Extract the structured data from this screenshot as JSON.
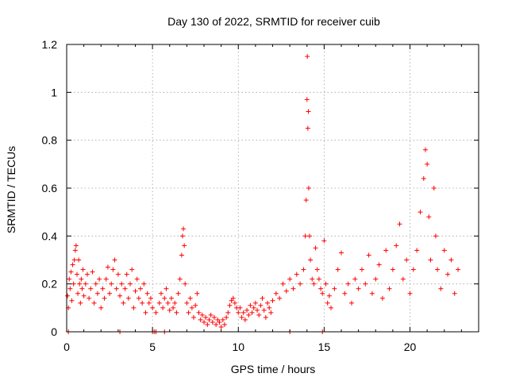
{
  "chart_data": {
    "type": "scatter",
    "title": "Day 130 of 2022, SRMTID for receiver cuib",
    "xlabel": "GPS time / hours",
    "ylabel": "SRMTID / TECUs",
    "xlim": [
      0,
      24
    ],
    "ylim": [
      0,
      1.2
    ],
    "xticks": [
      0,
      5,
      10,
      15,
      20
    ],
    "xtick_labels": [
      "0",
      "5",
      "10",
      "15",
      "20"
    ],
    "yticks": [
      0,
      0.2,
      0.4,
      0.6,
      0.8,
      1.0,
      1.2
    ],
    "ytick_labels": [
      "0",
      "0.2",
      "0.4",
      "0.6",
      "0.8",
      "1",
      "1.2"
    ],
    "grid": true,
    "marker": "+",
    "color": "#ff0000",
    "series": [
      {
        "name": "SRMTID",
        "points": [
          [
            0.05,
            0.15
          ],
          [
            0.1,
            0.1
          ],
          [
            0.15,
            0.22
          ],
          [
            0.2,
            0.18
          ],
          [
            0.25,
            0.25
          ],
          [
            0.3,
            0.13
          ],
          [
            0.35,
            0.28
          ],
          [
            0.4,
            0.2
          ],
          [
            0.45,
            0.3
          ],
          [
            0.5,
            0.34
          ],
          [
            0.55,
            0.36
          ],
          [
            0.6,
            0.24
          ],
          [
            0.65,
            0.16
          ],
          [
            0.7,
            0.3
          ],
          [
            0.75,
            0.2
          ],
          [
            0.8,
            0.12
          ],
          [
            0.85,
            0.22
          ],
          [
            0.9,
            0.18
          ],
          [
            0.95,
            0.26
          ],
          [
            1.0,
            0.15
          ],
          [
            1.1,
            0.2
          ],
          [
            1.2,
            0.24
          ],
          [
            1.3,
            0.14
          ],
          [
            1.4,
            0.18
          ],
          [
            1.5,
            0.25
          ],
          [
            1.6,
            0.12
          ],
          [
            1.7,
            0.2
          ],
          [
            1.8,
            0.16
          ],
          [
            1.9,
            0.22
          ],
          [
            2.0,
            0.1
          ],
          [
            2.1,
            0.18
          ],
          [
            2.2,
            0.14
          ],
          [
            2.3,
            0.22
          ],
          [
            2.4,
            0.27
          ],
          [
            2.5,
            0.16
          ],
          [
            2.6,
            0.2
          ],
          [
            2.7,
            0.26
          ],
          [
            2.8,
            0.3
          ],
          [
            2.9,
            0.18
          ],
          [
            3.0,
            0.24
          ],
          [
            3.1,
            0.15
          ],
          [
            3.2,
            0.2
          ],
          [
            3.3,
            0.12
          ],
          [
            3.4,
            0.18
          ],
          [
            3.5,
            0.24
          ],
          [
            3.6,
            0.14
          ],
          [
            3.7,
            0.2
          ],
          [
            3.8,
            0.26
          ],
          [
            3.9,
            0.1
          ],
          [
            4.0,
            0.17
          ],
          [
            4.1,
            0.22
          ],
          [
            4.2,
            0.14
          ],
          [
            4.3,
            0.18
          ],
          [
            4.4,
            0.12
          ],
          [
            4.5,
            0.2
          ],
          [
            4.6,
            0.08
          ],
          [
            4.7,
            0.16
          ],
          [
            4.8,
            0.12
          ],
          [
            4.9,
            0.14
          ],
          [
            5.0,
            0.1
          ],
          [
            5.2,
            0.08
          ],
          [
            5.4,
            0.12
          ],
          [
            5.5,
            0.16
          ],
          [
            5.6,
            0.1
          ],
          [
            5.7,
            0.14
          ],
          [
            5.8,
            0.18
          ],
          [
            5.9,
            0.12
          ],
          [
            6.0,
            0.09
          ],
          [
            6.1,
            0.14
          ],
          [
            6.2,
            0.1
          ],
          [
            6.3,
            0.12
          ],
          [
            6.4,
            0.08
          ],
          [
            6.5,
            0.16
          ],
          [
            6.6,
            0.22
          ],
          [
            6.7,
            0.32
          ],
          [
            6.75,
            0.4
          ],
          [
            6.8,
            0.43
          ],
          [
            6.85,
            0.36
          ],
          [
            6.9,
            0.2
          ],
          [
            7.0,
            0.12
          ],
          [
            7.1,
            0.08
          ],
          [
            7.2,
            0.14
          ],
          [
            7.3,
            0.1
          ],
          [
            7.4,
            0.06
          ],
          [
            7.5,
            0.11
          ],
          [
            7.6,
            0.16
          ],
          [
            7.7,
            0.08
          ],
          [
            7.8,
            0.05
          ],
          [
            7.9,
            0.07
          ],
          [
            8.0,
            0.04
          ],
          [
            8.1,
            0.06
          ],
          [
            8.2,
            0.03
          ],
          [
            8.3,
            0.05
          ],
          [
            8.4,
            0.07
          ],
          [
            8.5,
            0.04
          ],
          [
            8.6,
            0.06
          ],
          [
            8.7,
            0.03
          ],
          [
            8.8,
            0.05
          ],
          [
            8.9,
            0.04
          ],
          [
            9.0,
            0.02
          ],
          [
            9.1,
            0.05
          ],
          [
            9.2,
            0.03
          ],
          [
            9.3,
            0.06
          ],
          [
            9.4,
            0.08
          ],
          [
            9.5,
            0.11
          ],
          [
            9.6,
            0.13
          ],
          [
            9.7,
            0.14
          ],
          [
            9.8,
            0.12
          ],
          [
            9.9,
            0.1
          ],
          [
            10.0,
            0.08
          ],
          [
            10.1,
            0.1
          ],
          [
            10.2,
            0.06
          ],
          [
            10.3,
            0.08
          ],
          [
            10.4,
            0.05
          ],
          [
            10.5,
            0.09
          ],
          [
            10.6,
            0.07
          ],
          [
            10.7,
            0.11
          ],
          [
            10.8,
            0.08
          ],
          [
            10.9,
            0.1
          ],
          [
            11.0,
            0.12
          ],
          [
            11.1,
            0.09
          ],
          [
            11.2,
            0.07
          ],
          [
            11.3,
            0.11
          ],
          [
            11.4,
            0.14
          ],
          [
            11.5,
            0.09
          ],
          [
            11.6,
            0.06
          ],
          [
            11.7,
            0.12
          ],
          [
            11.8,
            0.1
          ],
          [
            11.9,
            0.08
          ],
          [
            12.0,
            0.13
          ],
          [
            12.2,
            0.16
          ],
          [
            12.4,
            0.14
          ],
          [
            12.6,
            0.2
          ],
          [
            12.8,
            0.17
          ],
          [
            13.0,
            0.22
          ],
          [
            13.2,
            0.18
          ],
          [
            13.4,
            0.24
          ],
          [
            13.6,
            0.2
          ],
          [
            13.8,
            0.26
          ],
          [
            13.9,
            0.4
          ],
          [
            13.95,
            0.55
          ],
          [
            14.0,
            0.97
          ],
          [
            14.02,
            1.15
          ],
          [
            14.05,
            0.85
          ],
          [
            14.08,
            0.92
          ],
          [
            14.1,
            0.6
          ],
          [
            14.15,
            0.4
          ],
          [
            14.2,
            0.3
          ],
          [
            14.3,
            0.22
          ],
          [
            14.4,
            0.2
          ],
          [
            14.5,
            0.35
          ],
          [
            14.6,
            0.26
          ],
          [
            14.7,
            0.22
          ],
          [
            14.8,
            0.18
          ],
          [
            14.9,
            0.16
          ],
          [
            15.0,
            0.38
          ],
          [
            15.1,
            0.2
          ],
          [
            15.2,
            0.12
          ],
          [
            15.3,
            0.15
          ],
          [
            15.4,
            0.1
          ],
          [
            15.6,
            0.18
          ],
          [
            15.8,
            0.26
          ],
          [
            16.0,
            0.33
          ],
          [
            16.2,
            0.16
          ],
          [
            16.4,
            0.2
          ],
          [
            16.6,
            0.12
          ],
          [
            16.8,
            0.22
          ],
          [
            17.0,
            0.18
          ],
          [
            17.2,
            0.26
          ],
          [
            17.4,
            0.2
          ],
          [
            17.6,
            0.32
          ],
          [
            17.8,
            0.16
          ],
          [
            18.0,
            0.22
          ],
          [
            18.2,
            0.28
          ],
          [
            18.4,
            0.14
          ],
          [
            18.6,
            0.34
          ],
          [
            18.8,
            0.18
          ],
          [
            19.0,
            0.26
          ],
          [
            19.2,
            0.36
          ],
          [
            19.4,
            0.45
          ],
          [
            19.6,
            0.22
          ],
          [
            19.8,
            0.3
          ],
          [
            20.0,
            0.16
          ],
          [
            20.2,
            0.26
          ],
          [
            20.4,
            0.34
          ],
          [
            20.6,
            0.5
          ],
          [
            20.8,
            0.64
          ],
          [
            20.9,
            0.76
          ],
          [
            21.0,
            0.7
          ],
          [
            21.1,
            0.48
          ],
          [
            21.2,
            0.3
          ],
          [
            21.4,
            0.6
          ],
          [
            21.5,
            0.4
          ],
          [
            21.6,
            0.26
          ],
          [
            21.8,
            0.18
          ],
          [
            22.0,
            0.34
          ],
          [
            22.2,
            0.24
          ],
          [
            22.4,
            0.3
          ],
          [
            22.6,
            0.16
          ],
          [
            22.8,
            0.26
          ]
        ]
      }
    ],
    "zero_markers_x": [
      0.1,
      3.1,
      5.0,
      5.1,
      5.2,
      5.7,
      13.0,
      14.9
    ]
  }
}
